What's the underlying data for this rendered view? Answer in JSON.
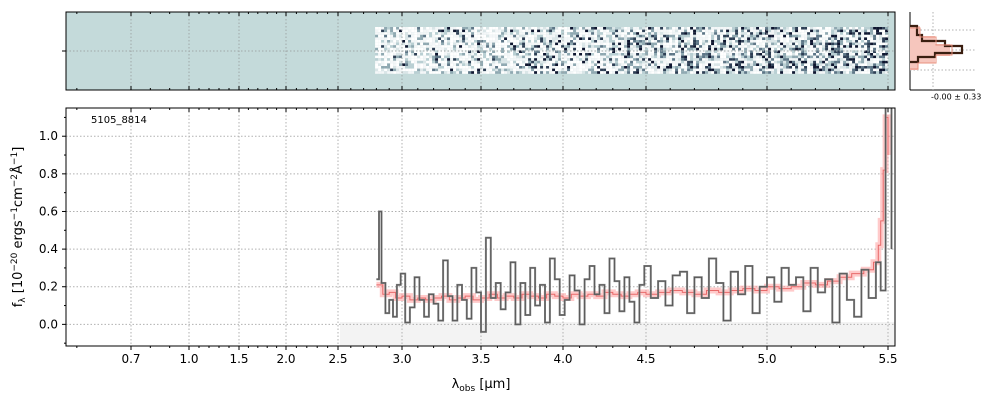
{
  "chart_data": {
    "type": "line",
    "id_label": "5105_8814",
    "xlabel": "λobs [μm]",
    "xlabel_main": "λ",
    "xlabel_sub": "obs",
    "xlabel_unit": "[μm]",
    "ylabel": "fλ [10−20 ergs−1cm−2Å−1]",
    "ylabel_parts": {
      "f": "f",
      "sub": "λ",
      "open": "[10",
      "exp1": "−20",
      "mid1": "ergs",
      "exp2": "−1",
      "mid2": "cm",
      "exp3": "−2",
      "mid3": "Å",
      "exp4": "−1",
      "close": "]"
    },
    "xlim": [
      0.58,
      5.52
    ],
    "ylim": [
      -0.115,
      1.15
    ],
    "x_ticks": [
      {
        "label": "0.7",
        "value": 0.7
      },
      {
        "label": "1.0",
        "value": 1.0
      },
      {
        "label": "1.5",
        "value": 1.5
      },
      {
        "label": "2.0",
        "value": 2.0
      },
      {
        "label": "2.5",
        "value": 2.5
      },
      {
        "label": "3.0",
        "value": 3.0
      },
      {
        "label": "3.5",
        "value": 3.5
      },
      {
        "label": "4.0",
        "value": 4.0
      },
      {
        "label": "4.5",
        "value": 4.5
      },
      {
        "label": "5.0",
        "value": 5.0
      },
      {
        "label": "5.5",
        "value": 5.5
      }
    ],
    "y_ticks": [
      "0.0",
      "0.2",
      "0.4",
      "0.6",
      "0.8",
      "1.0"
    ],
    "y_tick_values": [
      0.0,
      0.2,
      0.4,
      0.6,
      0.8,
      1.0
    ],
    "grid": true,
    "series": [
      {
        "role": "data",
        "color": "#7f7f7f",
        "points": [
          [
            2.8,
            0.24
          ],
          [
            2.82,
            0.6
          ],
          [
            2.84,
            0.22
          ],
          [
            2.87,
            0.06
          ],
          [
            2.9,
            0.13
          ],
          [
            2.93,
            0.04
          ],
          [
            2.96,
            0.21
          ],
          [
            2.99,
            0.27
          ],
          [
            3.02,
            0.01
          ],
          [
            3.05,
            0.09
          ],
          [
            3.08,
            0.25
          ],
          [
            3.11,
            0.13
          ],
          [
            3.14,
            0.04
          ],
          [
            3.17,
            0.16
          ],
          [
            3.2,
            0.11
          ],
          [
            3.23,
            0.02
          ],
          [
            3.26,
            0.34
          ],
          [
            3.29,
            0.15
          ],
          [
            3.32,
            0.02
          ],
          [
            3.35,
            0.21
          ],
          [
            3.38,
            0.13
          ],
          [
            3.41,
            0.03
          ],
          [
            3.44,
            0.3
          ],
          [
            3.47,
            0.17
          ],
          [
            3.5,
            -0.04
          ],
          [
            3.53,
            0.46
          ],
          [
            3.56,
            0.14
          ],
          [
            3.59,
            0.22
          ],
          [
            3.62,
            0.08
          ],
          [
            3.65,
            0.17
          ],
          [
            3.68,
            0.33
          ],
          [
            3.71,
            0.0
          ],
          [
            3.74,
            0.22
          ],
          [
            3.77,
            0.05
          ],
          [
            3.8,
            0.3
          ],
          [
            3.83,
            0.1
          ],
          [
            3.86,
            0.21
          ],
          [
            3.89,
            0.01
          ],
          [
            3.92,
            0.35
          ],
          [
            3.95,
            0.24
          ],
          [
            3.98,
            0.05
          ],
          [
            4.01,
            0.13
          ],
          [
            4.04,
            0.26
          ],
          [
            4.07,
            0.18
          ],
          [
            4.1,
            0.0
          ],
          [
            4.13,
            0.24
          ],
          [
            4.16,
            0.31
          ],
          [
            4.19,
            0.16
          ],
          [
            4.22,
            0.21
          ],
          [
            4.25,
            0.06
          ],
          [
            4.28,
            0.35
          ],
          [
            4.31,
            0.23
          ],
          [
            4.34,
            0.07
          ],
          [
            4.37,
            0.25
          ],
          [
            4.4,
            0.12
          ],
          [
            4.43,
            0.01
          ],
          [
            4.46,
            0.21
          ],
          [
            4.49,
            0.31
          ],
          [
            4.52,
            0.14
          ],
          [
            4.55,
            0.23
          ],
          [
            4.58,
            0.1
          ],
          [
            4.61,
            0.26
          ],
          [
            4.64,
            0.28
          ],
          [
            4.67,
            0.06
          ],
          [
            4.7,
            0.25
          ],
          [
            4.73,
            0.14
          ],
          [
            4.76,
            0.35
          ],
          [
            4.79,
            0.22
          ],
          [
            4.82,
            0.02
          ],
          [
            4.85,
            0.28
          ],
          [
            4.88,
            0.16
          ],
          [
            4.91,
            0.31
          ],
          [
            4.94,
            0.06
          ],
          [
            4.97,
            0.2
          ],
          [
            5.0,
            0.25
          ],
          [
            5.03,
            0.12
          ],
          [
            5.06,
            0.3
          ],
          [
            5.09,
            0.21
          ],
          [
            5.12,
            0.25
          ],
          [
            5.15,
            0.07
          ],
          [
            5.18,
            0.3
          ],
          [
            5.21,
            0.17
          ],
          [
            5.24,
            0.24
          ],
          [
            5.27,
            0.01
          ],
          [
            5.3,
            0.27
          ],
          [
            5.33,
            0.13
          ],
          [
            5.36,
            0.04
          ],
          [
            5.39,
            0.29
          ],
          [
            5.42,
            0.14
          ],
          [
            5.45,
            0.33
          ],
          [
            5.47,
            0.18
          ],
          [
            5.49,
            1.2
          ],
          [
            5.51,
            0.4
          ]
        ]
      },
      {
        "role": "model",
        "color": "#ff9e9e",
        "points": [
          [
            2.8,
            0.21
          ],
          [
            2.85,
            0.16
          ],
          [
            2.9,
            0.17
          ],
          [
            2.95,
            0.14
          ],
          [
            3.0,
            0.15
          ],
          [
            3.05,
            0.13
          ],
          [
            3.1,
            0.14
          ],
          [
            3.15,
            0.13
          ],
          [
            3.2,
            0.14
          ],
          [
            3.25,
            0.15
          ],
          [
            3.3,
            0.13
          ],
          [
            3.35,
            0.14
          ],
          [
            3.4,
            0.15
          ],
          [
            3.45,
            0.13
          ],
          [
            3.5,
            0.14
          ],
          [
            3.55,
            0.16
          ],
          [
            3.6,
            0.14
          ],
          [
            3.65,
            0.15
          ],
          [
            3.7,
            0.14
          ],
          [
            3.75,
            0.16
          ],
          [
            3.8,
            0.15
          ],
          [
            3.85,
            0.14
          ],
          [
            3.9,
            0.16
          ],
          [
            3.95,
            0.15
          ],
          [
            4.0,
            0.14
          ],
          [
            4.05,
            0.16
          ],
          [
            4.1,
            0.15
          ],
          [
            4.15,
            0.16
          ],
          [
            4.2,
            0.15
          ],
          [
            4.25,
            0.17
          ],
          [
            4.3,
            0.16
          ],
          [
            4.35,
            0.15
          ],
          [
            4.4,
            0.16
          ],
          [
            4.45,
            0.17
          ],
          [
            4.5,
            0.16
          ],
          [
            4.55,
            0.17
          ],
          [
            4.6,
            0.18
          ],
          [
            4.65,
            0.17
          ],
          [
            4.7,
            0.16
          ],
          [
            4.75,
            0.18
          ],
          [
            4.8,
            0.17
          ],
          [
            4.85,
            0.18
          ],
          [
            4.9,
            0.19
          ],
          [
            4.95,
            0.18
          ],
          [
            5.0,
            0.2
          ],
          [
            5.05,
            0.19
          ],
          [
            5.1,
            0.2
          ],
          [
            5.15,
            0.22
          ],
          [
            5.2,
            0.21
          ],
          [
            5.25,
            0.23
          ],
          [
            5.3,
            0.25
          ],
          [
            5.35,
            0.27
          ],
          [
            5.4,
            0.29
          ],
          [
            5.44,
            0.33
          ],
          [
            5.46,
            0.42
          ],
          [
            5.47,
            0.55
          ],
          [
            5.48,
            0.82
          ],
          [
            5.49,
            1.1
          ],
          [
            5.5,
            0.9
          ]
        ]
      }
    ],
    "panels": {
      "image_2d": {
        "colormap": "bone",
        "coverage_um": [
          2.79,
          5.5
        ]
      },
      "histogram": {
        "annotation": "-0.00 ± 0.33",
        "line_color": "#3a1e10",
        "fill_color": "#f6c6bd"
      }
    }
  }
}
